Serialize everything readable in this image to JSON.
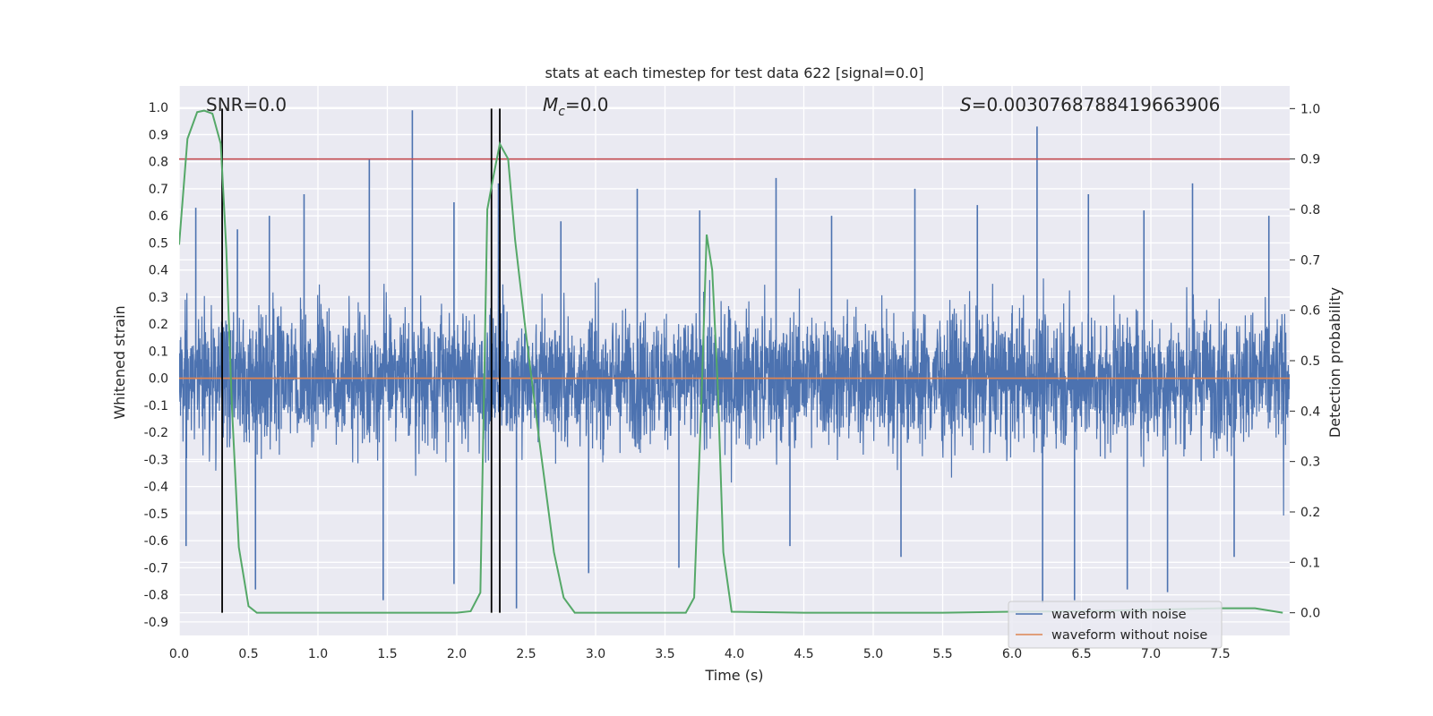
{
  "chart_data": {
    "type": "line",
    "title": "stats at each timestep for test data 622 [signal=0.0]",
    "xlabel": "Time (s)",
    "ylabel": "Whitened strain",
    "ylabel_right": "Detection probability",
    "xlim": [
      0.0,
      8.0
    ],
    "ylim": [
      -0.95,
      1.08
    ],
    "ylim_right": [
      -0.045,
      1.045
    ],
    "x_ticks": [
      "0.0",
      "0.5",
      "1.0",
      "1.5",
      "2.0",
      "2.5",
      "3.0",
      "3.5",
      "4.0",
      "4.5",
      "5.0",
      "5.5",
      "6.0",
      "6.5",
      "7.0",
      "7.5"
    ],
    "y_ticks": [
      "-0.9",
      "-0.8",
      "-0.7",
      "-0.6",
      "-0.5",
      "-0.4",
      "-0.3",
      "-0.2",
      "-0.1",
      "0.0",
      "0.1",
      "0.2",
      "0.3",
      "0.4",
      "0.5",
      "0.6",
      "0.7",
      "0.8",
      "0.9",
      "1.0"
    ],
    "y_ticks_right": [
      "0.0",
      "0.1",
      "0.2",
      "0.3",
      "0.4",
      "0.5",
      "0.6",
      "0.7",
      "0.8",
      "0.9",
      "1.0"
    ],
    "grid": true,
    "annotations": {
      "snr": "SNR=0.0",
      "mc_symbol": "M",
      "mc_sub": "c",
      "mc_value": "=0.0",
      "s_symbol": "S",
      "s_value": "=0.0030768788419663906"
    },
    "threshold": {
      "value": 0.9,
      "axis": "right",
      "color": "#c44e52"
    },
    "vlines": [
      0.31,
      2.25,
      2.31
    ],
    "legend": {
      "position": "lower-right",
      "entries": [
        "waveform with noise",
        "waveform without noise"
      ]
    },
    "series": [
      {
        "name": "waveform with noise",
        "color": "#4c72b0",
        "axis": "left",
        "description": "dense noisy whitened strain, roughly within -0.9 to 1.0",
        "peaks": [
          {
            "x": 0.12,
            "y": 0.63
          },
          {
            "x": 0.42,
            "y": 0.55
          },
          {
            "x": 0.65,
            "y": 0.6
          },
          {
            "x": 0.9,
            "y": 0.68
          },
          {
            "x": 1.37,
            "y": 0.81
          },
          {
            "x": 1.68,
            "y": 0.99
          },
          {
            "x": 1.98,
            "y": 0.65
          },
          {
            "x": 2.3,
            "y": 0.72
          },
          {
            "x": 2.75,
            "y": 0.58
          },
          {
            "x": 3.3,
            "y": 0.7
          },
          {
            "x": 3.75,
            "y": 0.62
          },
          {
            "x": 4.3,
            "y": 0.74
          },
          {
            "x": 4.7,
            "y": 0.6
          },
          {
            "x": 5.3,
            "y": 0.7
          },
          {
            "x": 5.75,
            "y": 0.64
          },
          {
            "x": 6.18,
            "y": 0.93
          },
          {
            "x": 6.55,
            "y": 0.68
          },
          {
            "x": 6.95,
            "y": 0.62
          },
          {
            "x": 7.3,
            "y": 0.72
          },
          {
            "x": 7.85,
            "y": 0.6
          }
        ],
        "troughs": [
          {
            "x": 0.05,
            "y": -0.62
          },
          {
            "x": 0.55,
            "y": -0.78
          },
          {
            "x": 1.47,
            "y": -0.82
          },
          {
            "x": 1.98,
            "y": -0.76
          },
          {
            "x": 2.43,
            "y": -0.85
          },
          {
            "x": 2.95,
            "y": -0.72
          },
          {
            "x": 3.6,
            "y": -0.7
          },
          {
            "x": 4.4,
            "y": -0.62
          },
          {
            "x": 5.2,
            "y": -0.66
          },
          {
            "x": 6.22,
            "y": -0.83
          },
          {
            "x": 6.45,
            "y": -0.82
          },
          {
            "x": 6.83,
            "y": -0.78
          },
          {
            "x": 7.12,
            "y": -0.79
          },
          {
            "x": 7.6,
            "y": -0.66
          }
        ]
      },
      {
        "name": "waveform without noise",
        "color": "#dd8452",
        "axis": "left",
        "x": [
          0.0,
          8.0
        ],
        "y": [
          0.0,
          0.0
        ]
      },
      {
        "name": "detection probability",
        "color": "#55a868",
        "axis": "right",
        "x": [
          0.0,
          0.06,
          0.13,
          0.18,
          0.24,
          0.3,
          0.34,
          0.38,
          0.43,
          0.5,
          0.56,
          0.7,
          1.0,
          1.5,
          2.0,
          2.1,
          2.17,
          2.22,
          2.26,
          2.31,
          2.37,
          2.42,
          2.5,
          2.6,
          2.7,
          2.77,
          2.85,
          3.0,
          3.4,
          3.65,
          3.71,
          3.76,
          3.8,
          3.84,
          3.88,
          3.92,
          3.98,
          4.5,
          5.0,
          5.5,
          6.0,
          6.5,
          7.0,
          7.5,
          7.75,
          7.95
        ],
        "y": [
          0.73,
          0.94,
          0.993,
          0.996,
          0.99,
          0.93,
          0.72,
          0.41,
          0.13,
          0.013,
          0.0,
          0.0,
          0.0,
          0.0,
          0.0,
          0.003,
          0.04,
          0.8,
          0.86,
          0.93,
          0.9,
          0.74,
          0.55,
          0.33,
          0.12,
          0.03,
          0.0,
          0.0,
          0.0,
          0.0,
          0.03,
          0.4,
          0.75,
          0.68,
          0.45,
          0.12,
          0.002,
          0.0,
          0.0,
          0.0,
          0.002,
          0.003,
          0.006,
          0.009,
          0.009,
          0.0
        ]
      }
    ]
  }
}
